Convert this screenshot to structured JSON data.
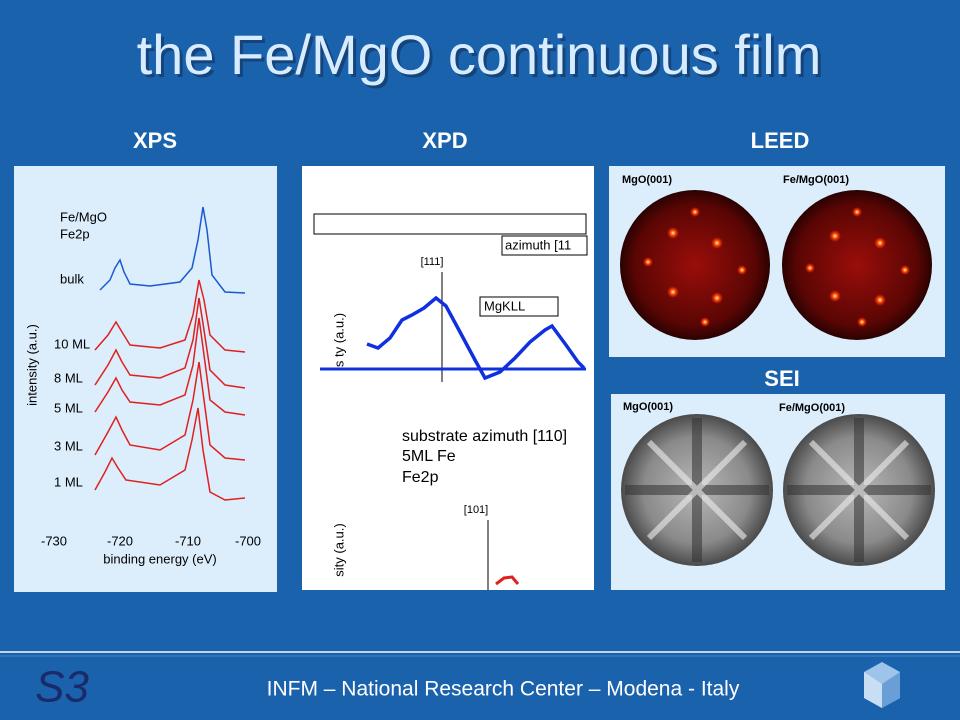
{
  "title": "the Fe/MgO continuous film",
  "xps": {
    "heading": "XPS",
    "sample": "Fe/MgO",
    "edge": "Fe2p",
    "curves": [
      "bulk",
      "10 ML",
      "8 ML",
      "5 ML",
      "3 ML",
      "1 ML"
    ],
    "xticks": [
      -730,
      -720,
      -710,
      -700
    ],
    "xlabel": "binding energy (eV)",
    "ylabel": "intensity (a.u.)"
  },
  "xpd": {
    "heading": "XPD",
    "azimuth_top": "azimuth [11",
    "dir_top": "[111]",
    "line": "MgKLL",
    "ylabel_top": "s ty (a.u.)",
    "caption": [
      "substrate azimuth [110]",
      "5ML Fe",
      "Fe2p"
    ],
    "dir_bottom": "[101]",
    "ylabel_bottom": "sity (a.u.)"
  },
  "leed": {
    "heading": "LEED",
    "left": "MgO(001)",
    "right": "Fe/MgO(001)"
  },
  "sei": {
    "heading": "SEI",
    "left": "MgO(001)",
    "right": "Fe/MgO(001)"
  },
  "footer": {
    "logo": "S3",
    "text": "INFM – National Research Center – Modena - Italy"
  }
}
